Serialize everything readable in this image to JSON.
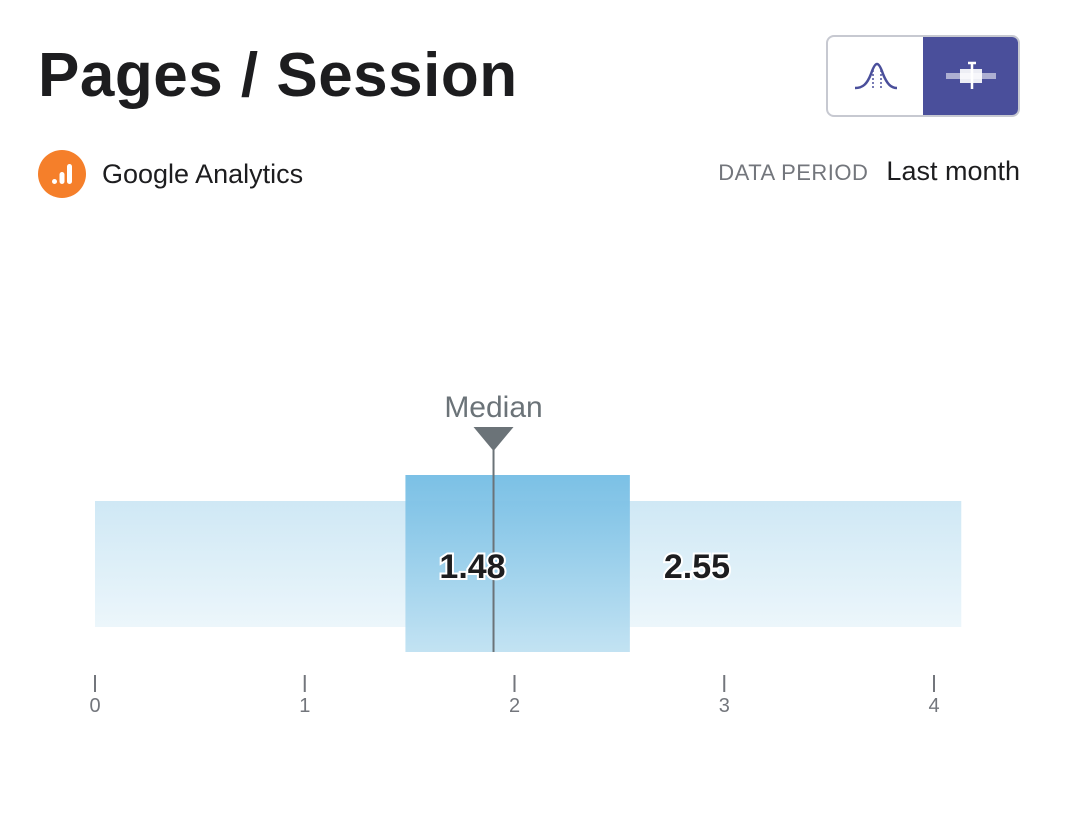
{
  "header": {
    "title": "Pages / Session"
  },
  "view_toggle": {
    "options": [
      {
        "icon": "distribution-curve-icon",
        "active": false
      },
      {
        "icon": "range-bar-icon",
        "active": true
      }
    ],
    "active_color": "#4a4f9b"
  },
  "source": {
    "icon": "google-analytics-icon",
    "label": "Google Analytics",
    "icon_color": "#f57f2a"
  },
  "period": {
    "label": "DATA PERIOD",
    "value": "Last month"
  },
  "chart_data": {
    "type": "range",
    "xlim": [
      0,
      4
    ],
    "ticks": [
      0,
      1,
      2,
      3,
      4
    ],
    "full_range": [
      0,
      4.13
    ],
    "interquartile_range": [
      1.48,
      2.55
    ],
    "median": 1.9,
    "median_label": "Median",
    "value_labels": [
      "1.48",
      "2.55"
    ],
    "colors": {
      "outer": "#d9eef8",
      "inner": "#7cc3e6",
      "median_marker": "#6b7378"
    }
  }
}
